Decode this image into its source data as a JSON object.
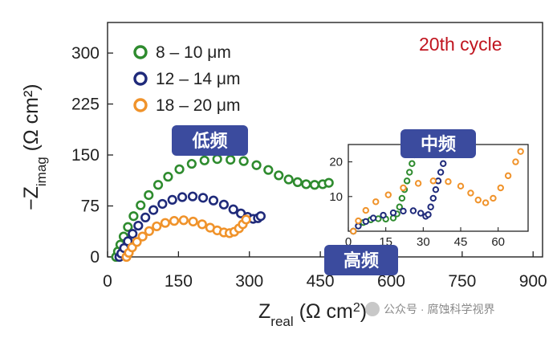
{
  "chart_data": {
    "type": "scatter",
    "xlabel": "Z",
    "xlabel_sub": "real",
    "xlabel_unit_open": " (Ω cm",
    "xlabel_unit_sup": "2",
    "xlabel_unit_close": ")",
    "ylabel": "−Z",
    "ylabel_sub": "imag",
    "ylabel_unit": " (Ω cm²)",
    "xlim": [
      0,
      920
    ],
    "ylim": [
      0,
      345
    ],
    "xticks": [
      0,
      150,
      300,
      450,
      600,
      750,
      900
    ],
    "yticks": [
      0,
      75,
      150,
      225,
      300
    ],
    "annotation": "20th cycle",
    "legend_position": "top-left",
    "series": [
      {
        "name": "8 – 10 μm",
        "color": "#2e8b2e",
        "points": [
          [
            18,
            0
          ],
          [
            22,
            8
          ],
          [
            27,
            18
          ],
          [
            34,
            30
          ],
          [
            43,
            44
          ],
          [
            55,
            60
          ],
          [
            70,
            76
          ],
          [
            87,
            91
          ],
          [
            107,
            106
          ],
          [
            128,
            118
          ],
          [
            152,
            129
          ],
          [
            178,
            137
          ],
          [
            205,
            142
          ],
          [
            232,
            144
          ],
          [
            260,
            143
          ],
          [
            288,
            141
          ],
          [
            315,
            135
          ],
          [
            340,
            128
          ],
          [
            362,
            120
          ],
          [
            383,
            114
          ],
          [
            402,
            110
          ],
          [
            420,
            107
          ],
          [
            438,
            106
          ],
          [
            455,
            107
          ],
          [
            468,
            109
          ]
        ]
      },
      {
        "name": "12 – 14 μm",
        "color": "#1f2a7a",
        "points": [
          [
            25,
            0
          ],
          [
            29,
            5
          ],
          [
            35,
            13
          ],
          [
            43,
            23
          ],
          [
            53,
            34
          ],
          [
            65,
            46
          ],
          [
            80,
            58
          ],
          [
            97,
            69
          ],
          [
            116,
            78
          ],
          [
            137,
            84
          ],
          [
            158,
            88
          ],
          [
            180,
            89
          ],
          [
            202,
            87
          ],
          [
            224,
            83
          ],
          [
            246,
            77
          ],
          [
            266,
            70
          ],
          [
            282,
            64
          ],
          [
            296,
            59
          ],
          [
            308,
            56
          ],
          [
            318,
            57
          ],
          [
            324,
            60
          ]
        ]
      },
      {
        "name": "18 – 20 μm",
        "color": "#f0932b",
        "points": [
          [
            40,
            0
          ],
          [
            45,
            6
          ],
          [
            52,
            14
          ],
          [
            62,
            22
          ],
          [
            74,
            30
          ],
          [
            88,
            38
          ],
          [
            104,
            45
          ],
          [
            122,
            50
          ],
          [
            141,
            53
          ],
          [
            161,
            54
          ],
          [
            181,
            52
          ],
          [
            200,
            48
          ],
          [
            217,
            43
          ],
          [
            232,
            39
          ],
          [
            246,
            36
          ],
          [
            258,
            35
          ],
          [
            268,
            37
          ],
          [
            278,
            42
          ],
          [
            286,
            48
          ],
          [
            293,
            55
          ]
        ]
      }
    ],
    "inset": {
      "xlim": [
        0,
        72
      ],
      "ylim": [
        0,
        25
      ],
      "xticks": [
        0,
        15,
        30,
        45,
        60
      ],
      "yticks": [
        10,
        20
      ],
      "series": [
        {
          "name": "8 – 10 μm",
          "color": "#2e8b2e",
          "points": [
            [
              2,
              0
            ],
            [
              4,
              1.5
            ],
            [
              6,
              2.5
            ],
            [
              9,
              3.3
            ],
            [
              12,
              3.6
            ],
            [
              15,
              3.5
            ],
            [
              18,
              3.8
            ],
            [
              19.5,
              5
            ],
            [
              20.5,
              7
            ],
            [
              21.5,
              9.5
            ],
            [
              22.5,
              12
            ],
            [
              23.5,
              14.5
            ],
            [
              24.5,
              17
            ],
            [
              25.5,
              19.5
            ],
            [
              26.5,
              22
            ]
          ]
        },
        {
          "name": "12 – 14 μm",
          "color": "#1f2a7a",
          "points": [
            [
              2,
              0
            ],
            [
              4,
              1.5
            ],
            [
              7,
              2.8
            ],
            [
              10,
              3.8
            ],
            [
              14,
              4.6
            ],
            [
              18,
              5.3
            ],
            [
              22,
              5.8
            ],
            [
              26,
              5.9
            ],
            [
              29,
              5.2
            ],
            [
              31,
              4.3
            ],
            [
              32,
              4.8
            ],
            [
              33,
              7
            ],
            [
              34,
              9.5
            ],
            [
              35,
              12
            ],
            [
              36,
              14.5
            ],
            [
              37,
              17
            ],
            [
              38,
              19.5
            ],
            [
              39,
              22
            ]
          ]
        },
        {
          "name": "18 – 20 μm",
          "color": "#f0932b",
          "points": [
            [
              2,
              0
            ],
            [
              4,
              3
            ],
            [
              7,
              6
            ],
            [
              11,
              8.5
            ],
            [
              16,
              10.5
            ],
            [
              22,
              12.5
            ],
            [
              28,
              13.8
            ],
            [
              34,
              14.5
            ],
            [
              40,
              14.3
            ],
            [
              45,
              13
            ],
            [
              49,
              11
            ],
            [
              52,
              9
            ],
            [
              55,
              8.2
            ],
            [
              58,
              9.5
            ],
            [
              61,
              12.5
            ],
            [
              64,
              16
            ],
            [
              67,
              20
            ],
            [
              69,
              23
            ]
          ]
        }
      ]
    }
  },
  "badges": {
    "low_freq": "低频",
    "mid_freq": "中频",
    "high_freq": "高频"
  },
  "watermark": {
    "text": "公众号 · 腐蚀科学视界"
  }
}
